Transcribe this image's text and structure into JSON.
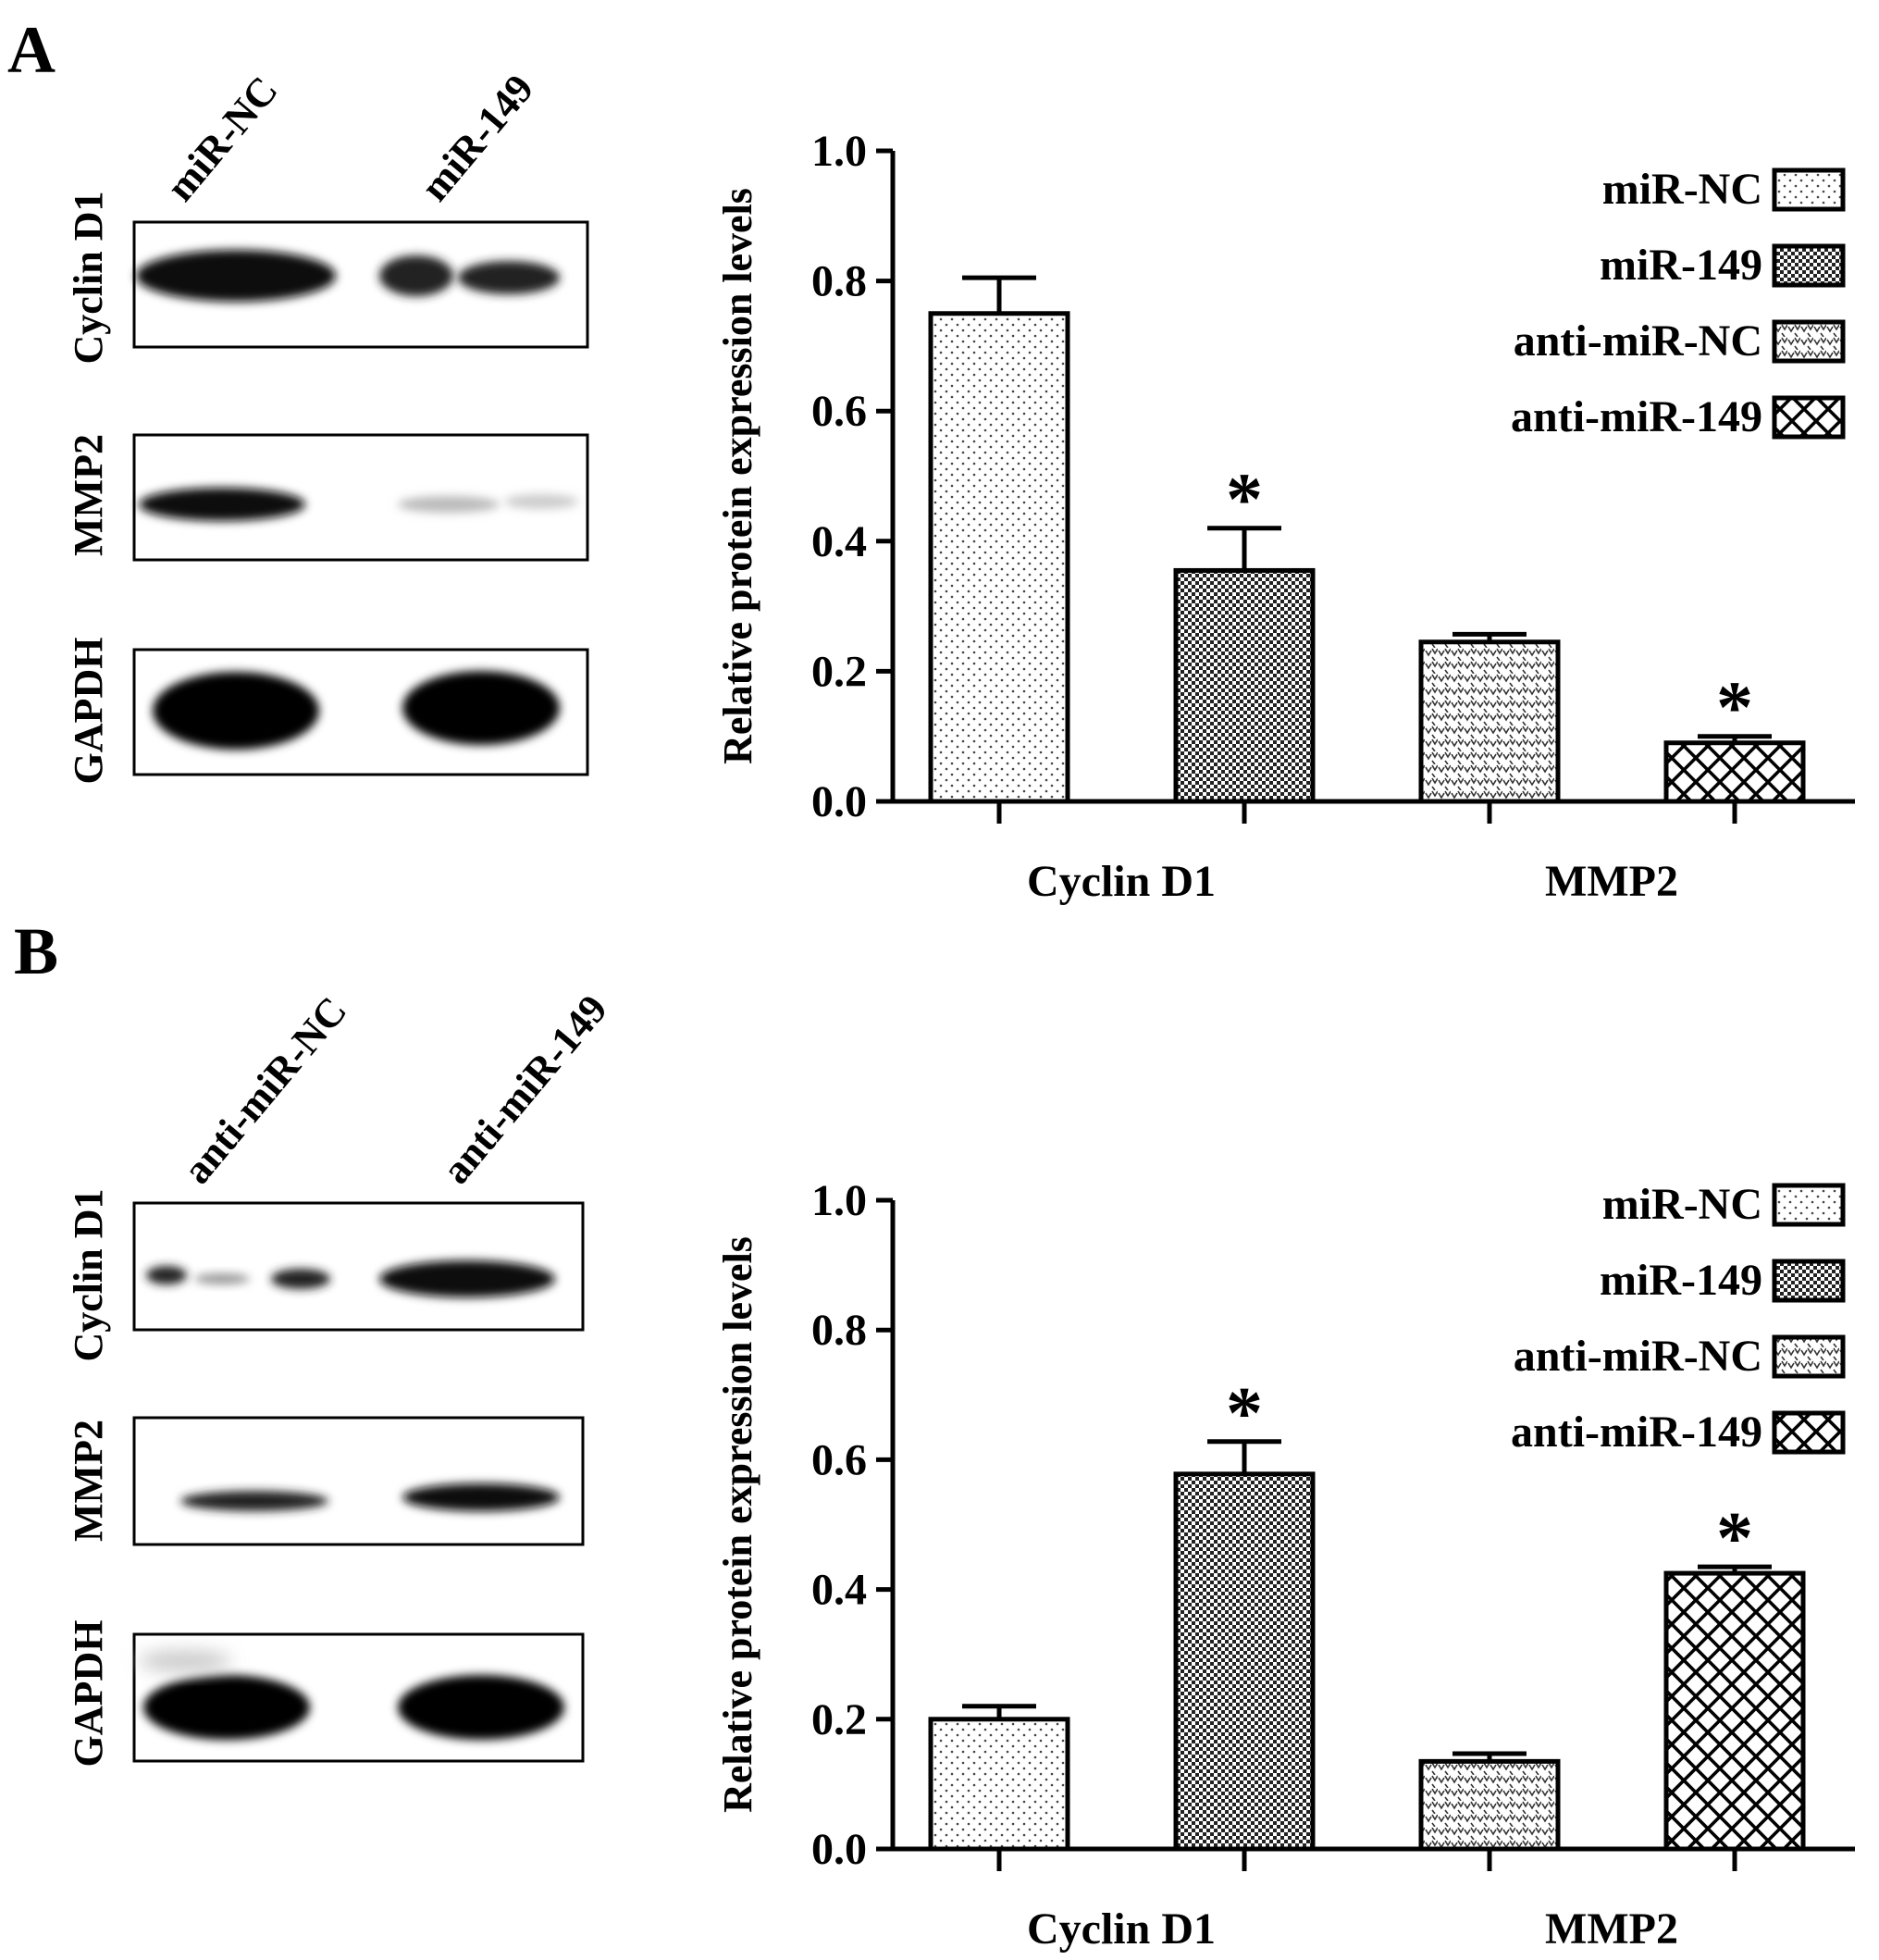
{
  "panels": [
    {
      "label": "A",
      "blot": {
        "lanes": [
          "miR-NC",
          "miR-149"
        ],
        "rows": [
          {
            "name": "Cyclin D1"
          },
          {
            "name": "MMP2"
          },
          {
            "name": "GAPDH"
          }
        ]
      }
    },
    {
      "label": "B",
      "blot": {
        "lanes": [
          "anti-miR-NC",
          "anti-miR-149"
        ],
        "rows": [
          {
            "name": "Cyclin D1"
          },
          {
            "name": "MMP2"
          },
          {
            "name": "GAPDH"
          }
        ]
      }
    }
  ],
  "chart_data": [
    {
      "type": "bar",
      "panel": "A",
      "categories": [
        "Cyclin D1",
        "MMP2"
      ],
      "ylabel": "Relative  protein expression levels",
      "ylim": [
        0,
        1.0
      ],
      "yticks": [
        "0.0",
        "0.2",
        "0.4",
        "0.6",
        "0.8",
        "1.0"
      ],
      "legend_position": "top-right",
      "series": [
        {
          "name": "miR-NC",
          "pattern": "dots",
          "values": [
            0.75,
            null
          ],
          "errors": [
            0.055,
            null
          ],
          "sig": [
            "",
            ""
          ]
        },
        {
          "name": "miR-149",
          "pattern": "checker",
          "values": [
            0.355,
            null
          ],
          "errors": [
            0.065,
            null
          ],
          "sig": [
            "*",
            ""
          ]
        },
        {
          "name": "anti-miR-NC",
          "pattern": "vdots",
          "values": [
            null,
            0.245
          ],
          "errors": [
            null,
            0.012
          ],
          "sig": [
            "",
            ""
          ]
        },
        {
          "name": "anti-miR-149",
          "pattern": "crosshatch",
          "values": [
            null,
            0.09
          ],
          "errors": [
            null,
            0.01
          ],
          "sig": [
            "",
            "*"
          ]
        }
      ]
    },
    {
      "type": "bar",
      "panel": "B",
      "categories": [
        "Cyclin D1",
        "MMP2"
      ],
      "ylabel": "Relative  protein expression levels",
      "ylim": [
        0,
        1.0
      ],
      "yticks": [
        "0.0",
        "0.2",
        "0.4",
        "0.6",
        "0.8",
        "1.0"
      ],
      "legend_position": "top-right",
      "series": [
        {
          "name": "miR-NC",
          "pattern": "dots",
          "values": [
            0.2,
            null
          ],
          "errors": [
            0.02,
            null
          ],
          "sig": [
            "",
            ""
          ]
        },
        {
          "name": "miR-149",
          "pattern": "checker",
          "values": [
            0.578,
            null
          ],
          "errors": [
            0.05,
            null
          ],
          "sig": [
            "*",
            ""
          ]
        },
        {
          "name": "anti-miR-NC",
          "pattern": "vdots",
          "values": [
            null,
            0.135
          ],
          "errors": [
            null,
            0.012
          ],
          "sig": [
            "",
            ""
          ]
        },
        {
          "name": "anti-miR-149",
          "pattern": "crosshatch",
          "values": [
            null,
            0.425
          ],
          "errors": [
            null,
            0.01
          ],
          "sig": [
            "",
            "*"
          ]
        }
      ]
    }
  ]
}
